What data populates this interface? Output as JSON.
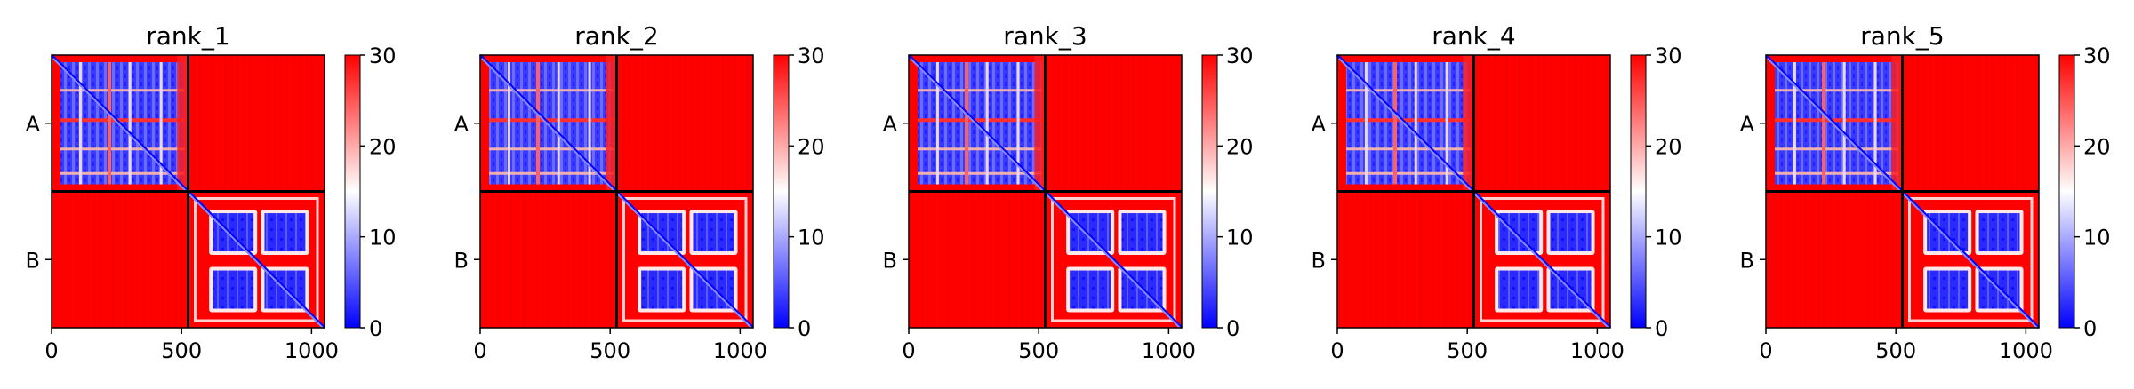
{
  "chart_data": [
    {
      "type": "heatmap",
      "title": "rank_1",
      "x_ticks": [
        0,
        500,
        1000
      ],
      "xlim": [
        0,
        1050
      ],
      "ylim": [
        0,
        1050
      ],
      "boundary": 525,
      "chain_labels": [
        "A",
        "B"
      ],
      "colorbar": {
        "ticks": [
          0,
          10,
          20,
          30
        ],
        "range": [
          0,
          30
        ],
        "colors": [
          "#0000ff",
          "#ffffff",
          "#ff0000"
        ]
      }
    },
    {
      "type": "heatmap",
      "title": "rank_2",
      "x_ticks": [
        0,
        500,
        1000
      ],
      "xlim": [
        0,
        1050
      ],
      "ylim": [
        0,
        1050
      ],
      "boundary": 525,
      "chain_labels": [
        "A",
        "B"
      ],
      "colorbar": {
        "ticks": [
          0,
          10,
          20,
          30
        ],
        "range": [
          0,
          30
        ],
        "colors": [
          "#0000ff",
          "#ffffff",
          "#ff0000"
        ]
      }
    },
    {
      "type": "heatmap",
      "title": "rank_3",
      "x_ticks": [
        0,
        500,
        1000
      ],
      "xlim": [
        0,
        1050
      ],
      "ylim": [
        0,
        1050
      ],
      "boundary": 525,
      "chain_labels": [
        "A",
        "B"
      ],
      "colorbar": {
        "ticks": [
          0,
          10,
          20,
          30
        ],
        "range": [
          0,
          30
        ],
        "colors": [
          "#0000ff",
          "#ffffff",
          "#ff0000"
        ]
      }
    },
    {
      "type": "heatmap",
      "title": "rank_4",
      "x_ticks": [
        0,
        500,
        1000
      ],
      "xlim": [
        0,
        1050
      ],
      "ylim": [
        0,
        1050
      ],
      "boundary": 525,
      "chain_labels": [
        "A",
        "B"
      ],
      "colorbar": {
        "ticks": [
          0,
          10,
          20,
          30
        ],
        "range": [
          0,
          30
        ],
        "colors": [
          "#0000ff",
          "#ffffff",
          "#ff0000"
        ]
      }
    },
    {
      "type": "heatmap",
      "title": "rank_5",
      "x_ticks": [
        0,
        500,
        1000
      ],
      "xlim": [
        0,
        1050
      ],
      "ylim": [
        0,
        1050
      ],
      "boundary": 525,
      "chain_labels": [
        "A",
        "B"
      ],
      "colorbar": {
        "ticks": [
          0,
          10,
          20,
          30
        ],
        "range": [
          0,
          30
        ],
        "colors": [
          "#0000ff",
          "#ffffff",
          "#ff0000"
        ]
      }
    }
  ]
}
